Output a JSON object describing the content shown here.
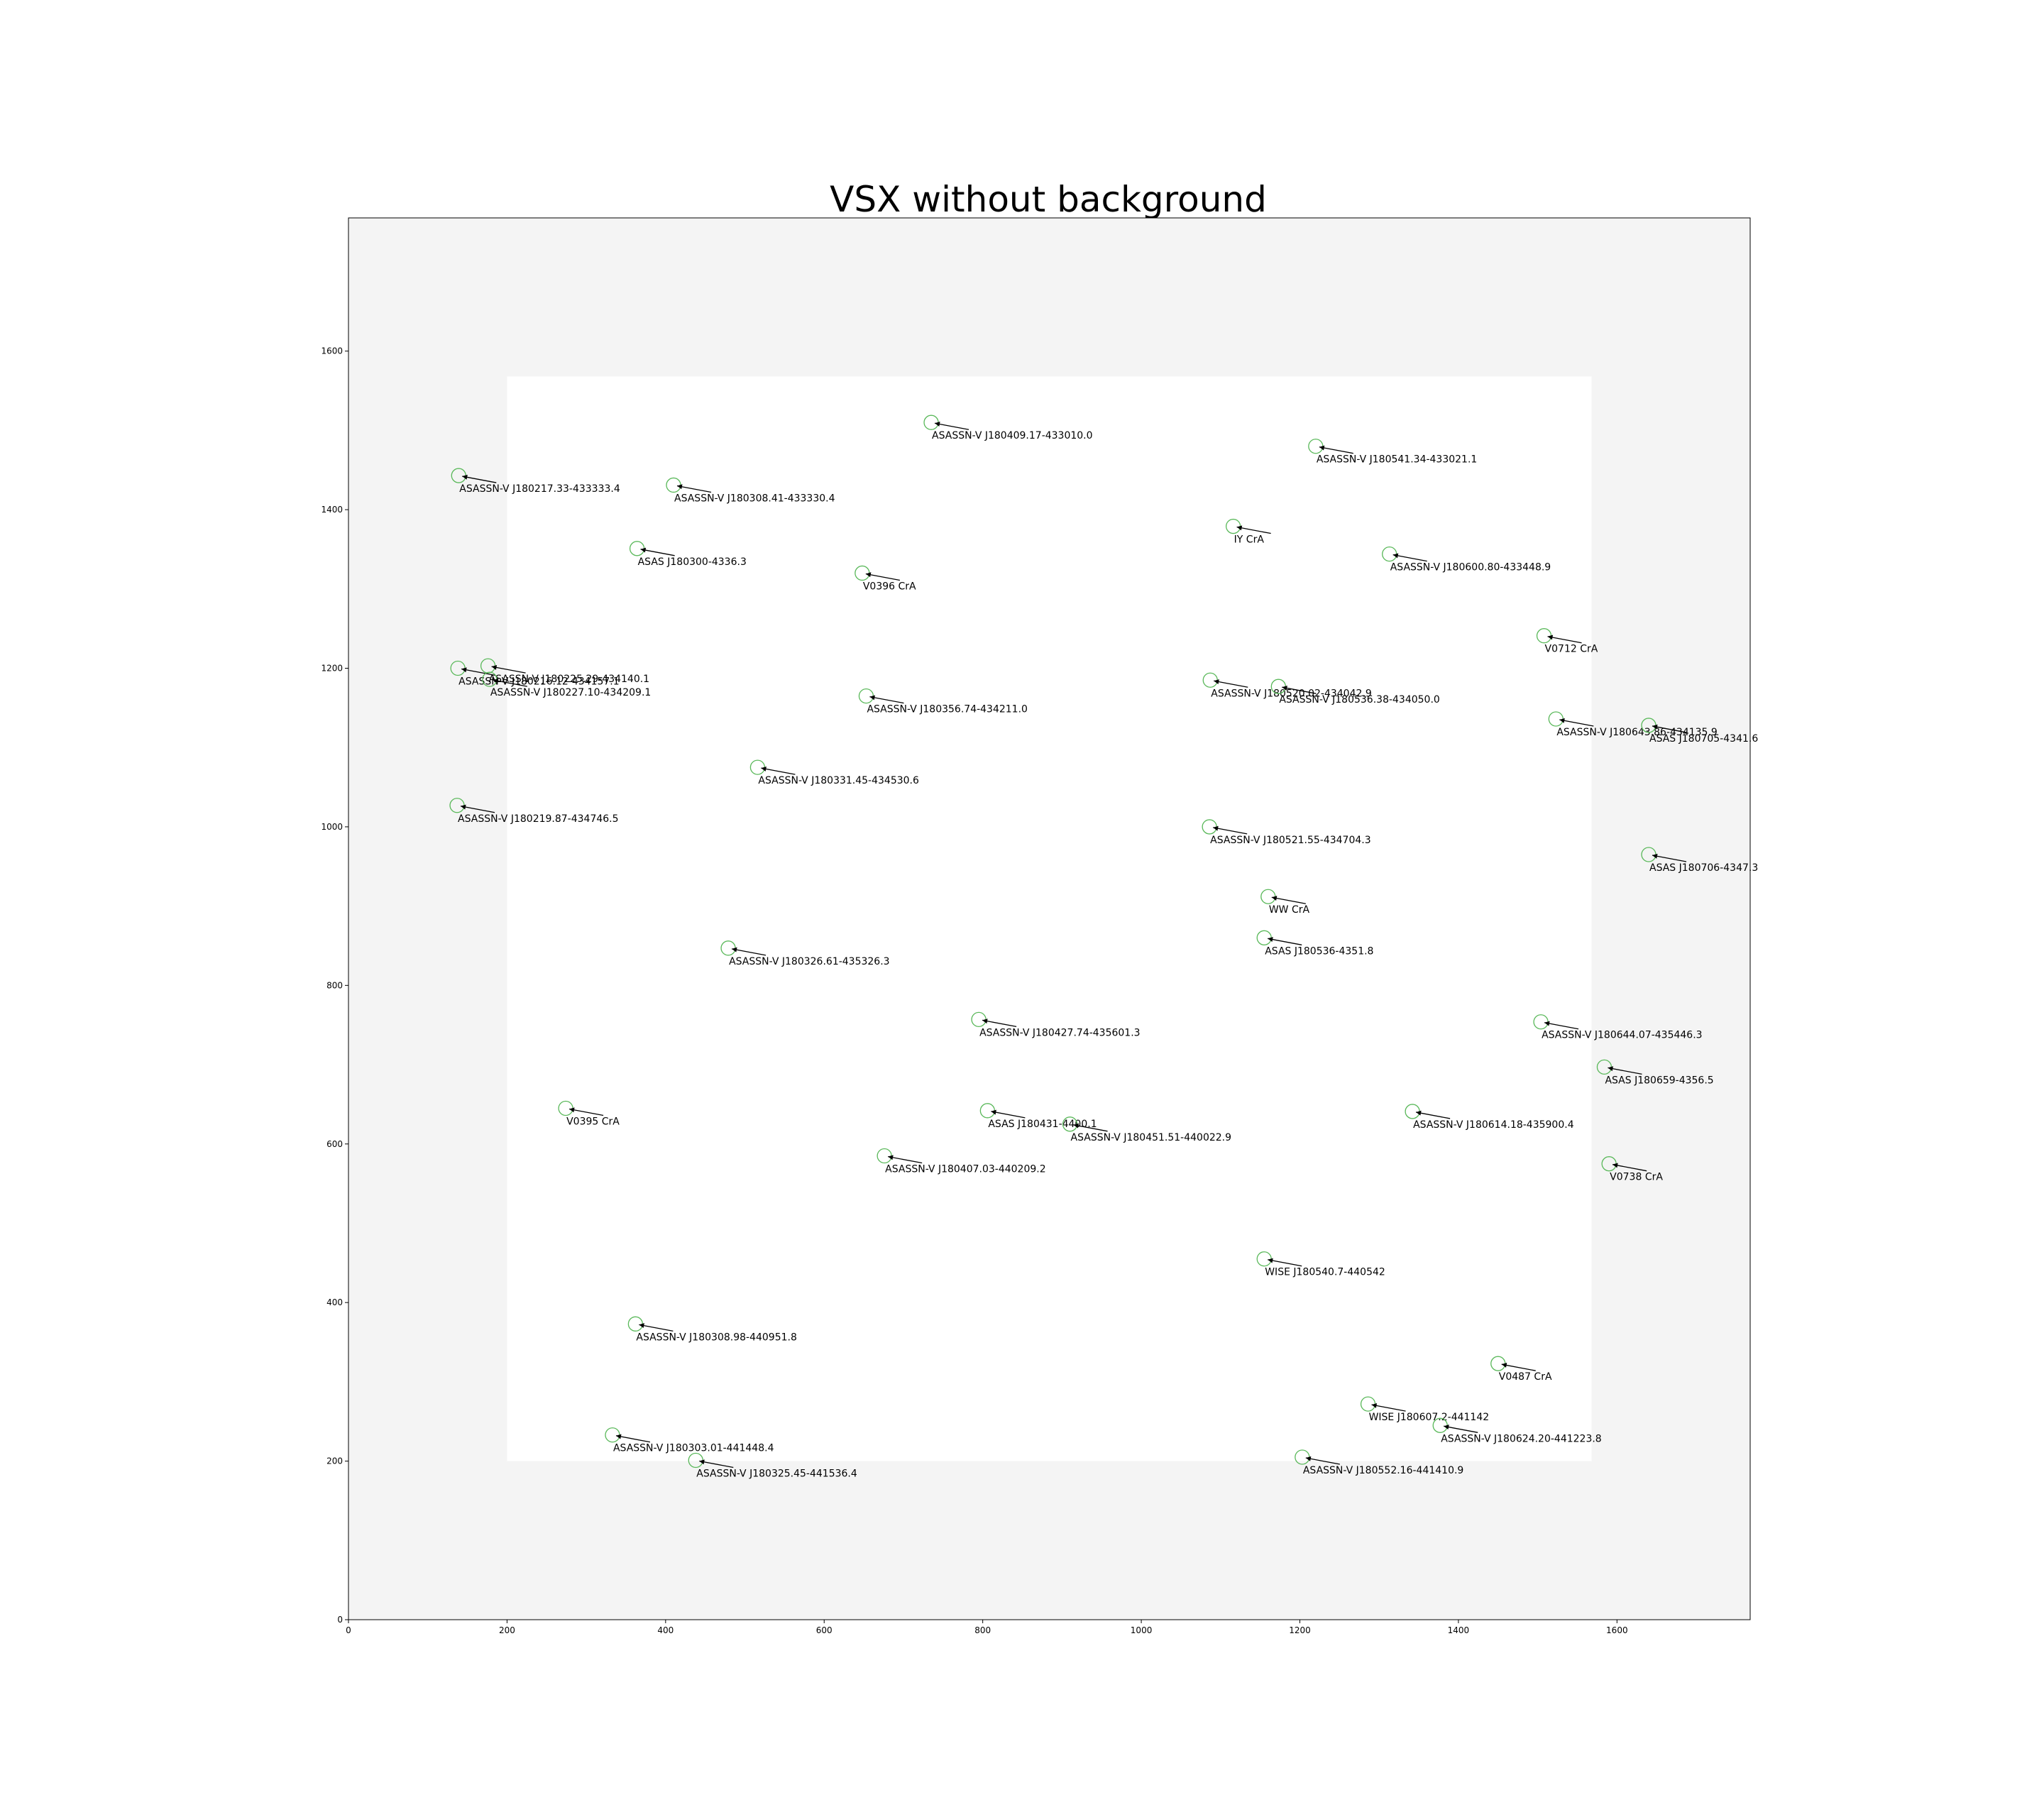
{
  "chart_data": {
    "type": "scatter",
    "title": "VSX without background",
    "xlabel": "",
    "ylabel": "",
    "xlim": [
      0,
      1768
    ],
    "ylim": [
      0,
      1768
    ],
    "x_ticks": [
      0,
      200,
      400,
      600,
      800,
      1000,
      1200,
      1400,
      1600
    ],
    "y_ticks": [
      0,
      200,
      400,
      600,
      800,
      1000,
      1200,
      1400,
      1600
    ],
    "grid": false,
    "background_color": "#f4f4f4",
    "image_region": {
      "x0": 200,
      "x1": 1568,
      "y0": 200,
      "y1": 1568,
      "color": "#ffffff"
    },
    "marker_color": "#59b859",
    "points": [
      {
        "label": "ASASSN-V J180409.17-433010.0",
        "x": 735,
        "y": 1510
      },
      {
        "label": "ASASSN-V J180541.34-433021.1",
        "x": 1220,
        "y": 1480
      },
      {
        "label": "ASASSN-V J180217.33-433333.4",
        "x": 139,
        "y": 1443
      },
      {
        "label": "ASASSN-V J180308.41-433330.4",
        "x": 410,
        "y": 1431
      },
      {
        "label": "IY CrA",
        "x": 1116,
        "y": 1379
      },
      {
        "label": "ASAS J180300-4336.3",
        "x": 364,
        "y": 1351
      },
      {
        "label": "ASASSN-V J180600.80-433448.9",
        "x": 1313,
        "y": 1344
      },
      {
        "label": "V0396 CrA",
        "x": 648,
        "y": 1320
      },
      {
        "label": "V0712 CrA",
        "x": 1508,
        "y": 1241
      },
      {
        "label": "ASASSN-V J180225.29-434140.1",
        "x": 176,
        "y": 1203
      },
      {
        "label": "ASASSN-V J180216.12-434157.1",
        "x": 138,
        "y": 1200
      },
      {
        "label": "ASASSN-V J180227.10-434209.1",
        "x": 178,
        "y": 1186
      },
      {
        "label": "ASASSN-V J180520.02-434042.9",
        "x": 1087,
        "y": 1185
      },
      {
        "label": "ASASSN-V J180536.38-434050.0",
        "x": 1173,
        "y": 1177
      },
      {
        "label": "ASASSN-V J180356.74-434211.0",
        "x": 653,
        "y": 1165
      },
      {
        "label": "ASASSN-V J180643.86-434135.9",
        "x": 1523,
        "y": 1136
      },
      {
        "label": "ASAS J180705-4341.6",
        "x": 1640,
        "y": 1128
      },
      {
        "label": "ASASSN-V J180331.45-434530.6",
        "x": 516,
        "y": 1075
      },
      {
        "label": "ASASSN-V J180219.87-434746.5",
        "x": 137,
        "y": 1027
      },
      {
        "label": "ASASSN-V J180521.55-434704.3",
        "x": 1086,
        "y": 1000
      },
      {
        "label": "ASAS J180706-4347.3",
        "x": 1640,
        "y": 965
      },
      {
        "label": "WW CrA",
        "x": 1160,
        "y": 912
      },
      {
        "label": "ASAS J180536-4351.8",
        "x": 1155,
        "y": 860
      },
      {
        "label": "ASASSN-V J180326.61-435326.3",
        "x": 479,
        "y": 847
      },
      {
        "label": "ASASSN-V J180427.74-435601.3",
        "x": 795,
        "y": 757
      },
      {
        "label": "ASASSN-V J180644.07-435446.3",
        "x": 1504,
        "y": 754
      },
      {
        "label": "ASAS J180659-4356.5",
        "x": 1584,
        "y": 697
      },
      {
        "label": "V0395 CrA",
        "x": 274,
        "y": 645
      },
      {
        "label": "ASAS J180431-4400.1",
        "x": 806,
        "y": 642
      },
      {
        "label": "ASASSN-V J180614.18-435900.4",
        "x": 1342,
        "y": 641
      },
      {
        "label": "ASASSN-V J180451.51-440022.9",
        "x": 910,
        "y": 625
      },
      {
        "label": "ASASSN-V J180407.03-440209.2",
        "x": 676,
        "y": 585
      },
      {
        "label": "V0738 CrA",
        "x": 1590,
        "y": 575
      },
      {
        "label": "WISE J180540.7-440542",
        "x": 1155,
        "y": 455
      },
      {
        "label": "ASASSN-V J180308.98-440951.8",
        "x": 362,
        "y": 373
      },
      {
        "label": "V0487 CrA",
        "x": 1450,
        "y": 323
      },
      {
        "label": "WISE J180607.2-441142",
        "x": 1286,
        "y": 272
      },
      {
        "label": "ASASSN-V J180624.20-441223.8",
        "x": 1377,
        "y": 245
      },
      {
        "label": "ASASSN-V J180303.01-441448.4",
        "x": 333,
        "y": 233
      },
      {
        "label": "ASASSN-V J180552.16-441410.9",
        "x": 1203,
        "y": 205
      },
      {
        "label": "ASASSN-V J180325.45-441536.4",
        "x": 438,
        "y": 201
      }
    ]
  }
}
